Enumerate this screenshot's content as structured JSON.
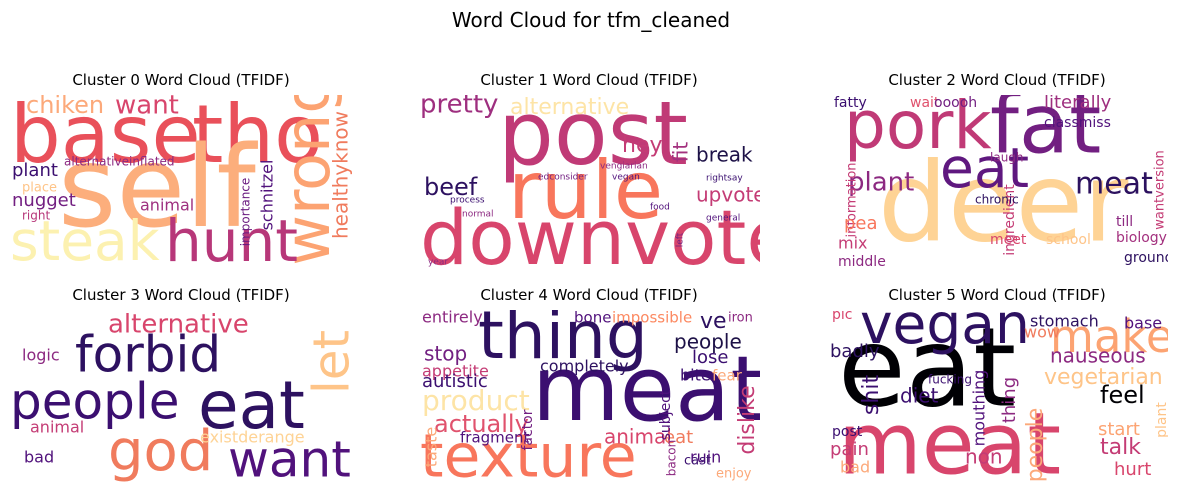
{
  "title": "Word Cloud for tfm_cleaned",
  "panels": [
    {
      "title": "Cluster 0 Word Cloud (TFIDF)",
      "words": [
        "base",
        "tho",
        "self",
        "wrong",
        "healthyknow",
        "steak",
        "hunt",
        "chiken",
        "want",
        "plant",
        "alternativeinflated",
        "schnitzel",
        "importance",
        "nugget",
        "place",
        "right",
        "animal"
      ]
    },
    {
      "title": "Cluster 1 Word Cloud (TFIDF)",
      "words": [
        "post",
        "rule",
        "downvote",
        "pretty",
        "alternative",
        "hey",
        "beef",
        "break",
        "fit",
        "upvote",
        "vengiarian",
        "vegan",
        "edconsider",
        "rightsay",
        "normal",
        "general",
        "left",
        "year",
        "food",
        "process"
      ]
    },
    {
      "title": "Cluster 2 Word Cloud (TFIDF)",
      "words": [
        "pork",
        "fat",
        "deer",
        "eat",
        "meat",
        "plant",
        "fatty",
        "wait",
        "ooooh",
        "literally",
        "classmiss",
        "information",
        "pea",
        "mix",
        "middle",
        "ingredient",
        "biology",
        "ground",
        "school",
        "meet",
        "laugh",
        "chronic",
        "till",
        "wantversion"
      ]
    },
    {
      "title": "Cluster 3 Word Cloud (TFIDF)",
      "words": [
        "forbid",
        "people",
        "eat",
        "let",
        "alternative",
        "logic",
        "god",
        "want",
        "existderange",
        "animal",
        "bad"
      ]
    },
    {
      "title": "Cluster 4 Word Cloud (TFIDF)",
      "words": [
        "thing",
        "meat",
        "texture",
        "entirely",
        "bone",
        "impossible",
        "ve",
        "iron",
        "stop",
        "people",
        "appetite",
        "lose",
        "autistic",
        "completely",
        "bite",
        "fear",
        "product",
        "actually",
        "animal",
        "eat",
        "dislike",
        "fragment",
        "factor",
        "subject",
        "ruin",
        "cast",
        "enjoy",
        "taste",
        "bacon"
      ]
    },
    {
      "title": "Cluster 5 Word Cloud (TFIDF)",
      "words": [
        "eat",
        "meat",
        "vegan",
        "make",
        "stomach",
        "base",
        "wow",
        "nauseous",
        "vegetarian",
        "feel",
        "talk",
        "hurt",
        "pain",
        "bad",
        "badly",
        "pic",
        "shit",
        "diet",
        "thing",
        "mouthing",
        "people",
        "non",
        "post",
        "fucking",
        "start",
        "plant"
      ]
    }
  ]
}
